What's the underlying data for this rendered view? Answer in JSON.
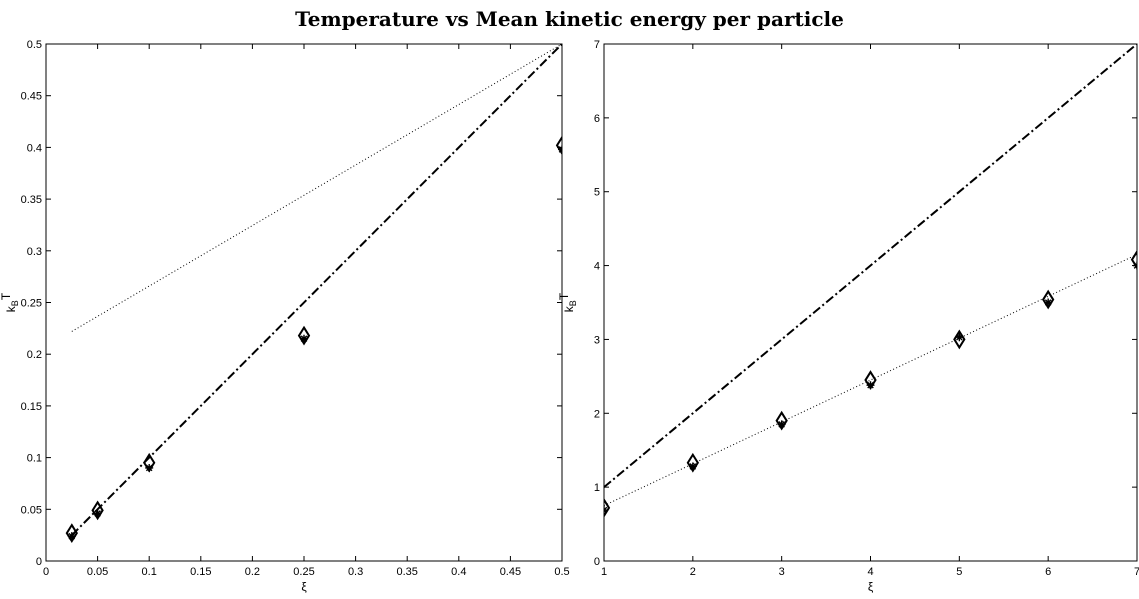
{
  "title": "Temperature vs Mean kinetic energy per particle",
  "chart_data": [
    {
      "type": "scatter",
      "xlabel": "ξ",
      "ylabel": "k_B T",
      "ylabel_main": "k",
      "ylabel_sub": "B",
      "ylabel_tail": "T",
      "xlim": [
        0,
        0.5
      ],
      "ylim": [
        0,
        0.5
      ],
      "xticks": [
        "0",
        "0.05",
        "0.1",
        "0.15",
        "0.2",
        "0.25",
        "0.3",
        "0.35",
        "0.4",
        "0.45",
        "0.5"
      ],
      "yticks": [
        "0",
        "0.05",
        "0.1",
        "0.15",
        "0.2",
        "0.25",
        "0.3",
        "0.35",
        "0.4",
        "0.45",
        "0.5"
      ],
      "grid": false,
      "lines": [
        {
          "style": "dashdot",
          "x": [
            0.025,
            0.5
          ],
          "y": [
            0.025,
            0.5
          ]
        },
        {
          "style": "dotted",
          "x": [
            0.025,
            0.5
          ],
          "y": [
            0.222,
            0.5
          ]
        }
      ],
      "markers": [
        {
          "shape": "diamond",
          "x": [
            0.025,
            0.05,
            0.1,
            0.25,
            0.5
          ],
          "y": [
            0.027,
            0.049,
            0.095,
            0.218,
            0.402
          ]
        },
        {
          "shape": "star",
          "x": [
            0.025,
            0.05,
            0.1,
            0.25,
            0.5
          ],
          "y": [
            0.024,
            0.046,
            0.09,
            0.215,
            0.398
          ]
        }
      ]
    },
    {
      "type": "scatter",
      "xlabel": "ξ",
      "ylabel": "k_B T",
      "ylabel_main": "k",
      "ylabel_sub": "B",
      "ylabel_tail": "T",
      "xlim": [
        1,
        7
      ],
      "ylim": [
        0,
        7
      ],
      "xticks": [
        "1",
        "2",
        "3",
        "4",
        "5",
        "6",
        "7"
      ],
      "yticks": [
        "0",
        "1",
        "2",
        "3",
        "4",
        "5",
        "6",
        "7"
      ],
      "grid": false,
      "lines": [
        {
          "style": "dashdot",
          "x": [
            1,
            7
          ],
          "y": [
            1,
            7
          ]
        },
        {
          "style": "dotted",
          "x": [
            1,
            7
          ],
          "y": [
            0.75,
            4.15
          ]
        }
      ],
      "markers": [
        {
          "shape": "diamond",
          "x": [
            1,
            2,
            3,
            4,
            5,
            6,
            7
          ],
          "y": [
            0.72,
            1.33,
            1.9,
            2.45,
            3.0,
            3.54,
            4.08
          ]
        },
        {
          "shape": "star",
          "x": [
            1,
            2,
            3,
            4,
            5,
            6,
            7
          ],
          "y": [
            0.69,
            1.28,
            1.85,
            2.38,
            3.03,
            3.5,
            4.0
          ]
        }
      ]
    }
  ]
}
